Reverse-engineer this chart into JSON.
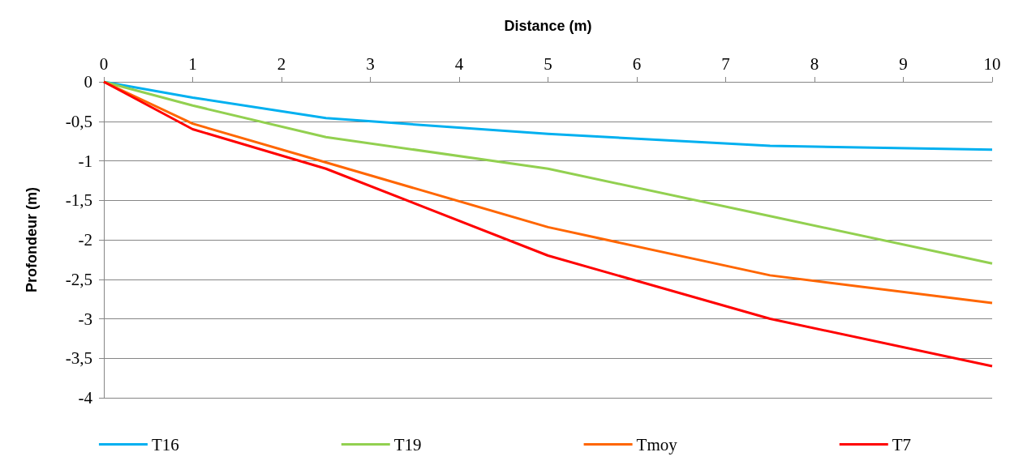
{
  "chart_data": {
    "type": "line",
    "xlabel": "Distance (m)",
    "ylabel": "Profondeur (m)",
    "x": [
      0,
      1,
      2.5,
      5,
      7.5,
      10
    ],
    "series": [
      {
        "name": "T16",
        "color": "#00b0f0",
        "values": [
          0,
          -0.2,
          -0.46,
          -0.66,
          -0.81,
          -0.86
        ]
      },
      {
        "name": "T19",
        "color": "#92d050",
        "values": [
          0,
          -0.3,
          -0.7,
          -1.1,
          -1.7,
          -2.3
        ]
      },
      {
        "name": "Tmoy",
        "color": "#ff6600",
        "values": [
          0,
          -0.53,
          -1.02,
          -1.84,
          -2.45,
          -2.8
        ]
      },
      {
        "name": "T7",
        "color": "#ff0000",
        "values": [
          0,
          -0.6,
          -1.1,
          -2.2,
          -3.0,
          -3.6
        ]
      }
    ],
    "xlim": [
      0,
      10
    ],
    "xticks": [
      0,
      1,
      2,
      3,
      4,
      5,
      6,
      7,
      8,
      9,
      10
    ],
    "ylim": [
      -4,
      0
    ],
    "yticks": [
      0,
      {
        "value": -0.5,
        "label": "-0,5"
      },
      -1,
      {
        "value": -1.5,
        "label": "-1,5"
      },
      -2,
      {
        "value": -2.5,
        "label": "-2,5"
      },
      -3,
      {
        "value": -3.5,
        "label": "-3,5"
      },
      -4
    ],
    "grid": "y",
    "legend": "bottom",
    "marker": "none",
    "line_style": "solid"
  }
}
